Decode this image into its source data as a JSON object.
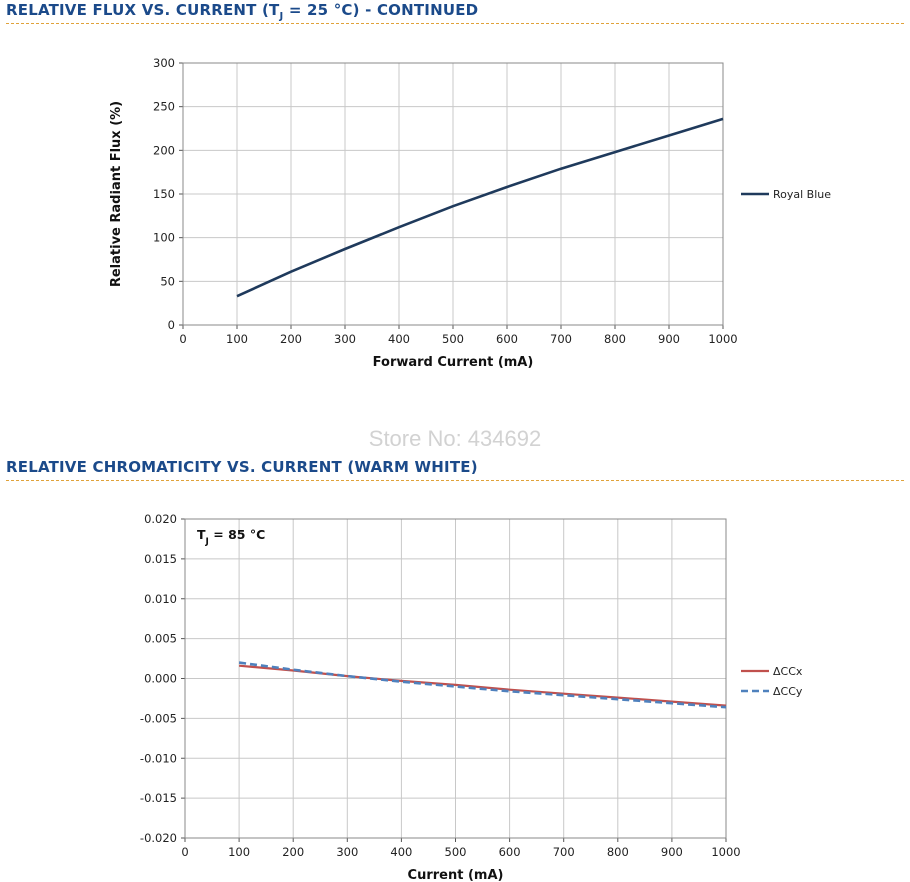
{
  "section1": {
    "title_prefix": "RELATIVE FLUX VS. CURRENT (T",
    "title_sub": "J",
    "title_suffix": " = 25 °C) - CONTINUED"
  },
  "section2": {
    "title": "RELATIVE CHROMATICITY VS. CURRENT (WARM WHITE)"
  },
  "watermark": "Store No: 434692",
  "chart_data": [
    {
      "type": "line",
      "title": "",
      "xlabel": "Forward Current (mA)",
      "ylabel": "Relative Radiant Flux (%)",
      "xlim": [
        0,
        1000
      ],
      "ylim": [
        0,
        300
      ],
      "xticks": [
        "0",
        "100",
        "200",
        "300",
        "400",
        "500",
        "600",
        "700",
        "800",
        "900",
        "1000"
      ],
      "yticks": [
        "0",
        "50",
        "100",
        "150",
        "200",
        "250",
        "300"
      ],
      "grid": true,
      "legend": "right",
      "colors": {
        "Royal Blue": "#1f3a5c"
      },
      "series": [
        {
          "name": "Royal Blue",
          "x": [
            100,
            200,
            300,
            400,
            500,
            600,
            700,
            800,
            900,
            1000
          ],
          "values": [
            33,
            61,
            87,
            112,
            136,
            158,
            179,
            198,
            217,
            236
          ]
        }
      ]
    },
    {
      "type": "line",
      "title": "",
      "annotation_prefix": "T",
      "annotation_sub": "J",
      "annotation_suffix": " = 85 °C",
      "xlabel": "Current (mA)",
      "ylabel": "",
      "xlim": [
        0,
        1000
      ],
      "ylim": [
        -0.02,
        0.02
      ],
      "xticks": [
        "0",
        "100",
        "200",
        "300",
        "400",
        "500",
        "600",
        "700",
        "800",
        "900",
        "1000"
      ],
      "yticks": [
        "-0.020",
        "-0.015",
        "-0.010",
        "-0.005",
        "0.000",
        "0.005",
        "0.010",
        "0.015",
        "0.020"
      ],
      "grid": true,
      "legend": "right",
      "colors": {
        "ΔCCx": "#c0504d",
        "ΔCCy": "#4f81bd"
      },
      "series": [
        {
          "name": "ΔCCx",
          "x": [
            100,
            200,
            300,
            400,
            500,
            600,
            700,
            800,
            900,
            1000
          ],
          "values": [
            0.0016,
            0.001,
            0.0003,
            -0.0003,
            -0.0008,
            -0.0014,
            -0.0019,
            -0.0024,
            -0.0029,
            -0.0034
          ]
        },
        {
          "name": "ΔCCy",
          "x": [
            100,
            200,
            300,
            400,
            500,
            600,
            700,
            800,
            900,
            1000
          ],
          "values": [
            0.002,
            0.0011,
            0.0003,
            -0.0004,
            -0.001,
            -0.0016,
            -0.0021,
            -0.0026,
            -0.0031,
            -0.0036
          ]
        }
      ]
    }
  ]
}
